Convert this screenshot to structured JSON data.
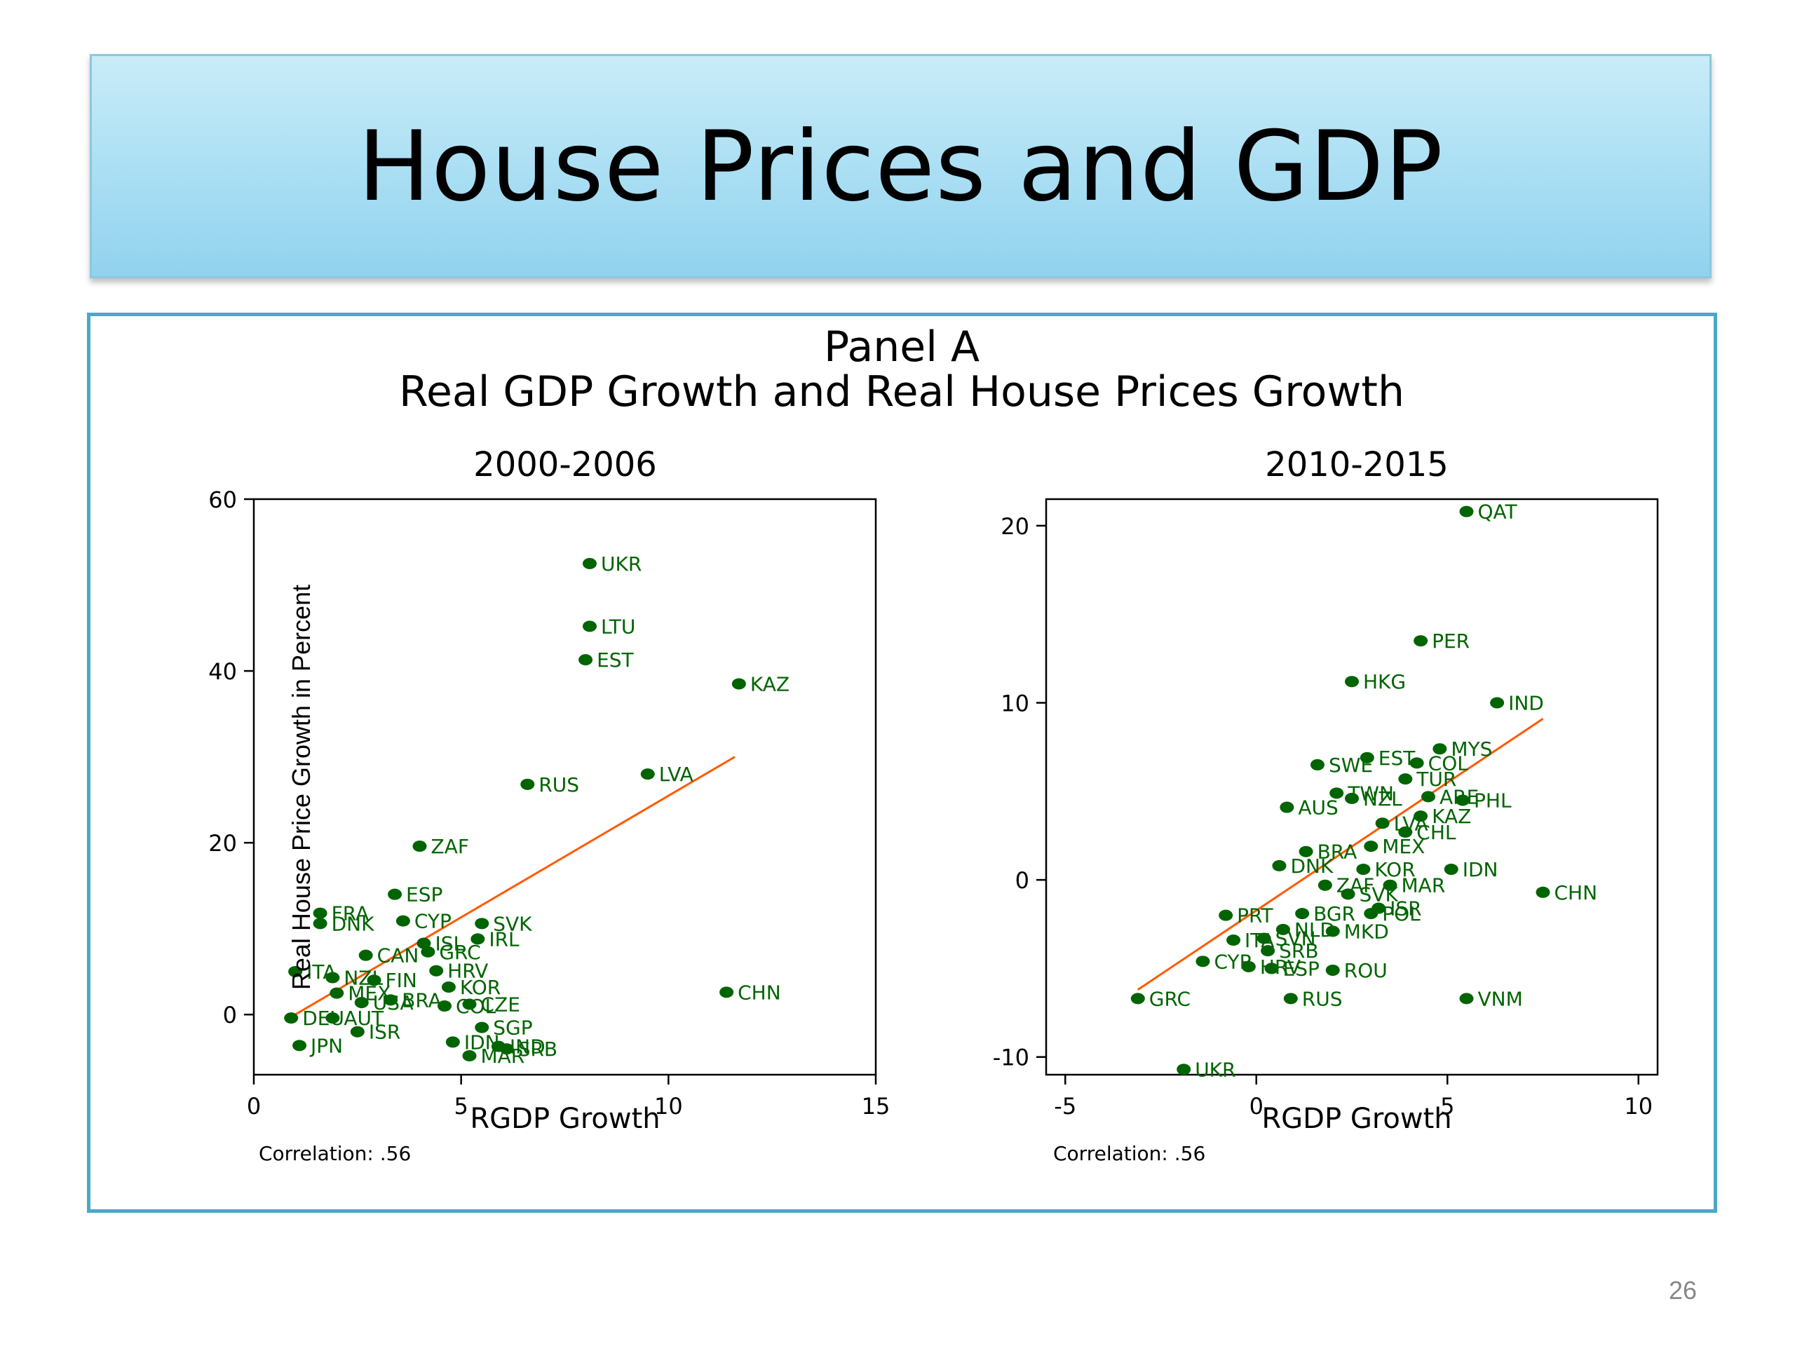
{
  "slide": {
    "title": "House Prices and GDP",
    "page_number": "26"
  },
  "colors": {
    "points": "#006400",
    "fit_line": "#ff5a00",
    "banner": "#a9def3",
    "frame": "#4aa8c8"
  },
  "chart_data": [
    {
      "type": "scatter",
      "title": "Panel A",
      "subtitle": "Real GDP Growth and Real House Prices Growth",
      "panel_title": "2000-2006",
      "xlabel": "RGDP Growth",
      "ylabel": "Real House Price Growth in Percent",
      "note": "Correlation: .56",
      "xlim": [
        0,
        15
      ],
      "ylim": [
        -7,
        60
      ],
      "xticks": [
        0,
        5,
        10,
        15
      ],
      "yticks": [
        0,
        20,
        40,
        60
      ],
      "grid": false,
      "fit_line": [
        [
          1,
          0
        ],
        [
          11.6,
          30
        ]
      ],
      "points": [
        {
          "label": "UKR",
          "x": 8.1,
          "y": 52.5
        },
        {
          "label": "LTU",
          "x": 8.1,
          "y": 45.2
        },
        {
          "label": "EST",
          "x": 8.0,
          "y": 41.3
        },
        {
          "label": "KAZ",
          "x": 11.7,
          "y": 38.5
        },
        {
          "label": "LVA",
          "x": 9.5,
          "y": 28.0
        },
        {
          "label": "RUS",
          "x": 6.6,
          "y": 26.8
        },
        {
          "label": "ZAF",
          "x": 4.0,
          "y": 19.6
        },
        {
          "label": "ESP",
          "x": 3.4,
          "y": 14.0
        },
        {
          "label": "FRA",
          "x": 1.6,
          "y": 11.8
        },
        {
          "label": "DNK",
          "x": 1.6,
          "y": 10.6
        },
        {
          "label": "CYP",
          "x": 3.6,
          "y": 10.9
        },
        {
          "label": "SVK",
          "x": 5.5,
          "y": 10.6
        },
        {
          "label": "IRL",
          "x": 5.4,
          "y": 8.8
        },
        {
          "label": "ISL",
          "x": 4.1,
          "y": 8.3
        },
        {
          "label": "GRC",
          "x": 4.2,
          "y": 7.3
        },
        {
          "label": "CAN",
          "x": 2.7,
          "y": 6.9
        },
        {
          "label": "HRV",
          "x": 4.4,
          "y": 5.1
        },
        {
          "label": "ITA",
          "x": 1.0,
          "y": 5.0
        },
        {
          "label": "NZL",
          "x": 1.9,
          "y": 4.3
        },
        {
          "label": "FIN",
          "x": 2.9,
          "y": 4.0
        },
        {
          "label": "KOR",
          "x": 4.7,
          "y": 3.2
        },
        {
          "label": "CHN",
          "x": 11.4,
          "y": 2.6
        },
        {
          "label": "MEX",
          "x": 2.0,
          "y": 2.5
        },
        {
          "label": "BRA",
          "x": 3.3,
          "y": 1.7
        },
        {
          "label": "COL",
          "x": 4.6,
          "y": 1.0
        },
        {
          "label": "CZE",
          "x": 5.2,
          "y": 1.2
        },
        {
          "label": "USA",
          "x": 2.6,
          "y": 1.4
        },
        {
          "label": "DEU",
          "x": 0.9,
          "y": -0.4
        },
        {
          "label": "AUT",
          "x": 1.9,
          "y": -0.4
        },
        {
          "label": "SGP",
          "x": 5.5,
          "y": -1.5
        },
        {
          "label": "ISR",
          "x": 2.5,
          "y": -2.0
        },
        {
          "label": "JPN",
          "x": 1.1,
          "y": -3.6
        },
        {
          "label": "IDN",
          "x": 4.8,
          "y": -3.2
        },
        {
          "label": "IND",
          "x": 5.9,
          "y": -3.7
        },
        {
          "label": "SRB",
          "x": 6.1,
          "y": -4.0
        },
        {
          "label": "MAR",
          "x": 5.2,
          "y": -4.8
        }
      ]
    },
    {
      "type": "scatter",
      "panel_title": "2010-2015",
      "xlabel": "RGDP Growth",
      "note": "Correlation: .56",
      "xlim": [
        -5.5,
        10.5
      ],
      "ylim": [
        -11,
        21.5
      ],
      "xticks": [
        -5,
        0,
        5,
        10
      ],
      "yticks": [
        -10,
        0,
        10,
        20
      ],
      "grid": false,
      "fit_line": [
        [
          -3.1,
          -6.2
        ],
        [
          7.5,
          9.1
        ]
      ],
      "points": [
        {
          "label": "QAT",
          "x": 5.5,
          "y": 20.8
        },
        {
          "label": "PER",
          "x": 4.3,
          "y": 13.5
        },
        {
          "label": "HKG",
          "x": 2.5,
          "y": 11.2
        },
        {
          "label": "IND",
          "x": 6.3,
          "y": 10.0
        },
        {
          "label": "MYS",
          "x": 4.8,
          "y": 7.4
        },
        {
          "label": "SWE",
          "x": 1.6,
          "y": 6.5
        },
        {
          "label": "EST",
          "x": 2.9,
          "y": 6.9
        },
        {
          "label": "COL",
          "x": 4.2,
          "y": 6.6
        },
        {
          "label": "TUR",
          "x": 3.9,
          "y": 5.7
        },
        {
          "label": "TWN",
          "x": 2.1,
          "y": 4.9
        },
        {
          "label": "NZL",
          "x": 2.5,
          "y": 4.6
        },
        {
          "label": "ARE",
          "x": 4.5,
          "y": 4.7
        },
        {
          "label": "PHL",
          "x": 5.4,
          "y": 4.5
        },
        {
          "label": "AUS",
          "x": 0.8,
          "y": 4.1
        },
        {
          "label": "KAZ",
          "x": 4.3,
          "y": 3.6
        },
        {
          "label": "LVA",
          "x": 3.3,
          "y": 3.2
        },
        {
          "label": "CHL",
          "x": 3.9,
          "y": 2.7
        },
        {
          "label": "MEX",
          "x": 3.0,
          "y": 1.9
        },
        {
          "label": "BRA",
          "x": 1.3,
          "y": 1.6
        },
        {
          "label": "KOR",
          "x": 2.8,
          "y": 0.6
        },
        {
          "label": "IDN",
          "x": 5.1,
          "y": 0.6
        },
        {
          "label": "DNK",
          "x": 0.6,
          "y": 0.8
        },
        {
          "label": "ZAF",
          "x": 1.8,
          "y": -0.3
        },
        {
          "label": "MAR",
          "x": 3.5,
          "y": -0.3
        },
        {
          "label": "CHN",
          "x": 7.5,
          "y": -0.7
        },
        {
          "label": "SVK",
          "x": 2.4,
          "y": -0.8
        },
        {
          "label": "ISR",
          "x": 3.2,
          "y": -1.6
        },
        {
          "label": "PRT",
          "x": -0.8,
          "y": -2.0
        },
        {
          "label": "BGR",
          "x": 1.2,
          "y": -1.9
        },
        {
          "label": "POL",
          "x": 3.0,
          "y": -1.9
        },
        {
          "label": "NLD",
          "x": 0.7,
          "y": -2.8
        },
        {
          "label": "MKD",
          "x": 2.0,
          "y": -2.9
        },
        {
          "label": "ITA",
          "x": -0.6,
          "y": -3.4
        },
        {
          "label": "SVN",
          "x": 0.2,
          "y": -3.3
        },
        {
          "label": "SRB",
          "x": 0.3,
          "y": -4.0
        },
        {
          "label": "CYP",
          "x": -1.4,
          "y": -4.6
        },
        {
          "label": "HRV",
          "x": -0.2,
          "y": -4.9
        },
        {
          "label": "ESP",
          "x": 0.4,
          "y": -5.0
        },
        {
          "label": "ROU",
          "x": 2.0,
          "y": -5.1
        },
        {
          "label": "GRC",
          "x": -3.1,
          "y": -6.7
        },
        {
          "label": "RUS",
          "x": 0.9,
          "y": -6.7
        },
        {
          "label": "VNM",
          "x": 5.5,
          "y": -6.7
        },
        {
          "label": "UKR",
          "x": -1.9,
          "y": -10.7
        }
      ]
    }
  ]
}
